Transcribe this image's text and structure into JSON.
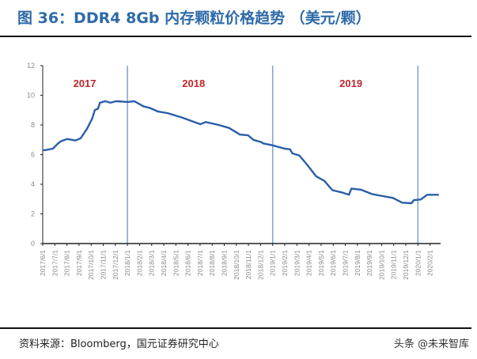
{
  "title": "图 36：DDR4 8Gb 内存颗粒价格趋势 （美元/颗）",
  "source": "资料来源：Bloomberg，国元证券研究中心",
  "watermark": "头条 @未来智库",
  "chart_data": {
    "type": "line",
    "title": "",
    "xlabel": "",
    "ylabel": "",
    "ylim": [
      0,
      12
    ],
    "yticks": [
      "0",
      "2",
      "4",
      "6",
      "8",
      "10",
      "12"
    ],
    "xticks": [
      "2017/6/1",
      "2017/7/1",
      "2017/8/1",
      "2017/9/1",
      "2017/10/1",
      "2017/11/1",
      "2017/12/1",
      "2018/1/1",
      "2018/2/1",
      "2018/3/1",
      "2018/4/1",
      "2018/5/1",
      "2018/6/1",
      "2018/7/1",
      "2018/8/1",
      "2018/9/1",
      "2018/10/1",
      "2018/11/1",
      "2018/12/1",
      "2019/1/1",
      "2019/2/1",
      "2019/3/1",
      "2019/4/1",
      "2019/5/1",
      "2019/6/1",
      "2019/7/1",
      "2019/8/1",
      "2019/9/1",
      "2019/10/1",
      "2019/11/1",
      "2019/12/1",
      "2020/1/1",
      "2020/2/1"
    ],
    "grid": false,
    "line_color": "#2a5ea8",
    "divider_color": "#7fa3d1",
    "year_label_color": "#c0262d",
    "dividers": [
      "2018/1/1",
      "2019/1/1",
      "2020/1/1"
    ],
    "year_labels": [
      {
        "text": "2017",
        "x": "2017/9/15"
      },
      {
        "text": "2018",
        "x": "2018/6/15"
      },
      {
        "text": "2019",
        "x": "2019/7/15"
      }
    ],
    "series": [
      {
        "x": [
          "2017/6/1",
          "2017/6/6",
          "2017/6/26",
          "2017/7/9",
          "2017/7/16",
          "2017/8/2",
          "2017/8/22",
          "2017/9/5",
          "2017/9/21",
          "2017/10/4",
          "2017/10/10",
          "2017/10/18",
          "2017/10/23",
          "2017/11/6",
          "2017/11/19",
          "2017/12/3",
          "2018/1/2",
          "2018/1/18",
          "2018/2/11",
          "2018/2/26",
          "2018/3/17",
          "2018/4/10",
          "2018/5/16",
          "2018/7/2",
          "2018/7/15",
          "2018/8/17",
          "2018/9/13",
          "2018/10/10",
          "2018/10/30",
          "2018/11/13",
          "2018/12/2",
          "2018/12/8",
          "2018/12/30",
          "2019/2/1",
          "2019/2/14",
          "2019/2/20",
          "2019/3/7",
          "2019/3/26",
          "2019/4/19",
          "2019/5/9",
          "2019/5/29",
          "2019/6/25",
          "2019/7/10",
          "2019/7/16",
          "2019/8/10",
          "2019/9/7",
          "2019/10/4",
          "2019/10/29",
          "2019/11/22",
          "2019/12/15",
          "2019/12/21",
          "2020/1/8",
          "2020/1/24",
          "2020/2/23"
        ],
        "values": [
          6.3,
          6.3,
          6.4,
          6.75,
          6.9,
          7.05,
          6.95,
          7.1,
          7.75,
          8.45,
          9.0,
          9.1,
          9.5,
          9.6,
          9.5,
          9.6,
          9.55,
          9.6,
          9.25,
          9.15,
          8.9,
          8.8,
          8.5,
          8.05,
          8.2,
          8.0,
          7.8,
          7.35,
          7.3,
          7.0,
          6.85,
          6.75,
          6.63,
          6.4,
          6.36,
          6.08,
          5.94,
          5.33,
          4.53,
          4.23,
          3.6,
          3.43,
          3.29,
          3.7,
          3.63,
          3.34,
          3.2,
          3.08,
          2.76,
          2.72,
          2.93,
          2.97,
          3.29,
          3.29
        ]
      }
    ]
  }
}
